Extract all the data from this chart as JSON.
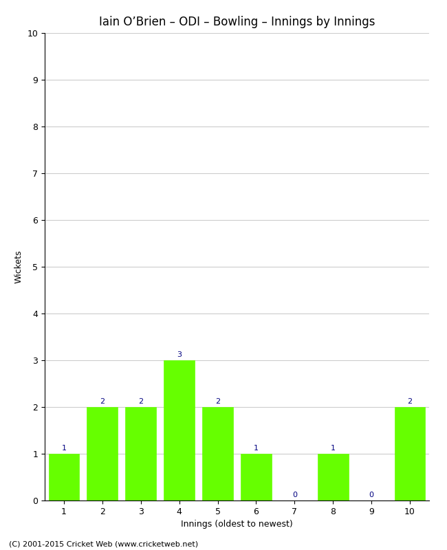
{
  "title": "Iain O’Brien – ODI – Bowling – Innings by Innings",
  "categories": [
    "1",
    "2",
    "3",
    "4",
    "5",
    "6",
    "7",
    "8",
    "9",
    "10"
  ],
  "values": [
    1,
    2,
    2,
    3,
    2,
    1,
    0,
    1,
    0,
    2
  ],
  "bar_color": "#66ff00",
  "bar_edge_color": "#66ff00",
  "xlabel": "Innings (oldest to newest)",
  "ylabel": "Wickets",
  "ylim": [
    0,
    10
  ],
  "yticks": [
    0,
    1,
    2,
    3,
    4,
    5,
    6,
    7,
    8,
    9,
    10
  ],
  "label_color": "#000080",
  "label_fontsize": 8,
  "title_fontsize": 12,
  "axis_fontsize": 9,
  "tick_fontsize": 9,
  "footer": "(C) 2001-2015 Cricket Web (www.cricketweb.net)",
  "footer_fontsize": 8,
  "background_color": "#ffffff",
  "grid_color": "#cccccc"
}
